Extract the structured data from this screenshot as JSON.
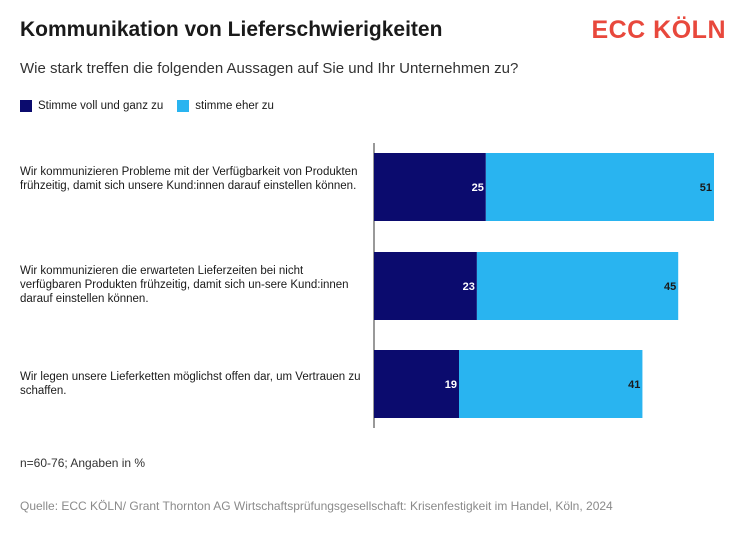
{
  "header": {
    "title": "Kommunikation von Lieferschwierigkeiten",
    "subtitle": "Wie stark treffen die folgenden Aussagen auf Sie und Ihr Unternehmen zu?",
    "logo_text": "ECC KÖLN"
  },
  "footer": {
    "note": "n=60-76; Angaben in %",
    "source": "Quelle: ECC KÖLN/ Grant Thornton AG Wirtschaftsprüfungsgesellschaft: Krisenfestigkeit im Handel, Köln, 2024"
  },
  "colors": {
    "logo": "#e8483c",
    "series_1": "#0b0b6e",
    "series_2": "#29b4f0"
  },
  "chart_data": {
    "type": "bar",
    "orientation": "horizontal",
    "stacked": true,
    "categories": [
      "Wir kommunizieren Probleme mit der Verfügbarkeit von Produkten frühzeitig, damit sich unsere Kund:innen darauf einstellen können.",
      "Wir kommunizieren die erwarteten Lieferzeiten bei nicht verfügbaren Produkten frühzeitig, damit sich un-sere Kund:innen darauf einstellen können.",
      "Wir legen unsere Lieferketten möglichst offen dar, um Vertrauen zu schaffen."
    ],
    "series": [
      {
        "name": "Stimme voll und ganz zu",
        "values": [
          25,
          23,
          19
        ],
        "color": "#0b0b6e"
      },
      {
        "name": "stimme eher zu",
        "values": [
          51,
          45,
          41
        ],
        "color": "#29b4f0"
      }
    ],
    "xlim": [
      0,
      76
    ],
    "legend_position": "top-left",
    "grid": false
  }
}
